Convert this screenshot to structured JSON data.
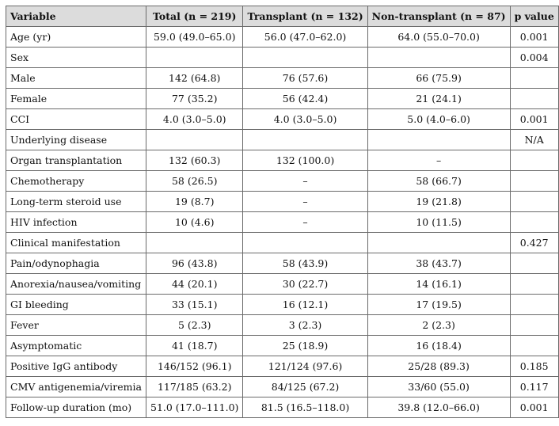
{
  "table": {
    "headers": [
      "Variable",
      "Total (n = 219)",
      "Transplant (n = 132)",
      "Non-transplant (n = 87)",
      "p value"
    ],
    "rows": [
      [
        "Age (yr)",
        "59.0 (49.0–65.0)",
        "56.0 (47.0–62.0)",
        "64.0 (55.0–70.0)",
        "0.001"
      ],
      [
        "Sex",
        "",
        "",
        "",
        "0.004"
      ],
      [
        "Male",
        "142 (64.8)",
        "76 (57.6)",
        "66 (75.9)",
        ""
      ],
      [
        "Female",
        "77 (35.2)",
        "56 (42.4)",
        "21 (24.1)",
        ""
      ],
      [
        "CCI",
        "4.0 (3.0–5.0)",
        "4.0 (3.0–5.0)",
        "5.0 (4.0–6.0)",
        "0.001"
      ],
      [
        "Underlying disease",
        "",
        "",
        "",
        "N/A"
      ],
      [
        "Organ transplantation",
        "132 (60.3)",
        "132 (100.0)",
        "–",
        ""
      ],
      [
        "Chemotherapy",
        "58 (26.5)",
        "–",
        "58 (66.7)",
        ""
      ],
      [
        "Long-term steroid use",
        "19 (8.7)",
        "–",
        "19 (21.8)",
        ""
      ],
      [
        "HIV infection",
        "10 (4.6)",
        "–",
        "10 (11.5)",
        ""
      ],
      [
        "Clinical manifestation",
        "",
        "",
        "",
        "0.427"
      ],
      [
        "Pain/odynophagia",
        "96 (43.8)",
        "58 (43.9)",
        "38 (43.7)",
        ""
      ],
      [
        "Anorexia/nausea/vomiting",
        "44 (20.1)",
        "30 (22.7)",
        "14 (16.1)",
        ""
      ],
      [
        "GI bleeding",
        "33 (15.1)",
        "16 (12.1)",
        "17 (19.5)",
        ""
      ],
      [
        "Fever",
        "5 (2.3)",
        "3 (2.3)",
        "2 (2.3)",
        ""
      ],
      [
        "Asymptomatic",
        "41 (18.7)",
        "25 (18.9)",
        "16 (18.4)",
        ""
      ],
      [
        "Positive IgG antibody",
        "146/152 (96.1)",
        "121/124 (97.6)",
        "25/28 (89.3)",
        "0.185"
      ],
      [
        "CMV antigenemia/viremia",
        "117/185 (63.2)",
        "84/125 (67.2)",
        "33/60 (55.0)",
        "0.117"
      ],
      [
        "Follow-up duration (mo)",
        "51.0 (17.0–111.0)",
        "81.5 (16.5–118.0)",
        "39.8 (12.0–66.0)",
        "0.001"
      ]
    ]
  }
}
